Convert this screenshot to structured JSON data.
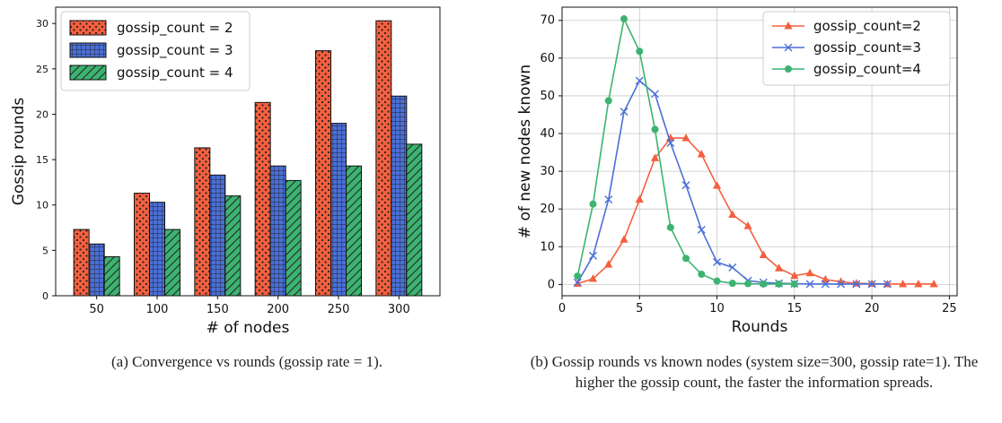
{
  "chart_data": [
    {
      "type": "bar",
      "xlabel": "# of nodes",
      "ylabel": "Gossip rounds",
      "categories": [
        "50",
        "100",
        "150",
        "200",
        "250",
        "300"
      ],
      "ylim": [
        0,
        31.8
      ],
      "yticks": [
        0,
        5,
        10,
        15,
        20,
        25,
        30
      ],
      "legend_position": "top-left",
      "grid": false,
      "series": [
        {
          "name": "gossip_count = 2",
          "color": "#f4603f",
          "hatch": "dots",
          "values": [
            7.3,
            11.3,
            16.3,
            21.3,
            27.0,
            30.3
          ]
        },
        {
          "name": "gossip_count = 3",
          "color": "#4a6fd8",
          "hatch": "grid",
          "values": [
            5.7,
            10.3,
            13.3,
            14.3,
            19.0,
            22.0
          ]
        },
        {
          "name": "gossip_count = 4",
          "color": "#3cb371",
          "hatch": "diagonal",
          "values": [
            4.3,
            7.3,
            11.0,
            12.7,
            14.3,
            16.7
          ]
        }
      ],
      "caption": "(a) Convergence vs rounds (gossip rate = 1)."
    },
    {
      "type": "line",
      "xlabel": "Rounds",
      "ylabel": "# of new nodes known",
      "xlim": [
        0,
        25.5
      ],
      "ylim": [
        -3,
        73.5
      ],
      "xticks": [
        0,
        5,
        10,
        15,
        20,
        25
      ],
      "yticks": [
        0,
        10,
        20,
        30,
        40,
        50,
        60,
        70
      ],
      "legend_position": "top-right",
      "grid": true,
      "series": [
        {
          "name": "gossip_count=2",
          "color": "#f4603f",
          "marker": "triangle",
          "x": [
            1,
            2,
            3,
            4,
            5,
            6,
            7,
            8,
            9,
            10,
            11,
            12,
            13,
            14,
            15,
            16,
            17,
            18,
            19,
            20,
            21,
            22,
            23,
            24
          ],
          "y": [
            0.2,
            1.5,
            5.3,
            11.9,
            22.5,
            33.5,
            38.8,
            38.8,
            34.5,
            26.2,
            18.5,
            15.5,
            7.8,
            4.3,
            2.3,
            3.0,
            1.3,
            0.7,
            0.3,
            0.2,
            0.1,
            0.1,
            0.1,
            0.1
          ]
        },
        {
          "name": "gossip_count=3",
          "color": "#4a6fd8",
          "marker": "x",
          "x": [
            1,
            2,
            3,
            4,
            5,
            6,
            7,
            8,
            9,
            10,
            11,
            12,
            13,
            14,
            15,
            16,
            17,
            18,
            19,
            20,
            21
          ],
          "y": [
            0.5,
            7.6,
            22.5,
            45.8,
            54.0,
            50.5,
            37.5,
            26.3,
            14.5,
            5.9,
            4.5,
            1.0,
            0.5,
            0.3,
            0.2,
            0.1,
            0.1,
            0.1,
            0.1,
            0.1,
            0.1
          ]
        },
        {
          "name": "gossip_count=4",
          "color": "#3cb371",
          "marker": "circle",
          "x": [
            1,
            2,
            3,
            4,
            5,
            6,
            7,
            8,
            9,
            10,
            11,
            12,
            13,
            14,
            15
          ],
          "y": [
            2.2,
            21.3,
            48.7,
            70.4,
            61.8,
            41.1,
            15.1,
            6.9,
            2.7,
            0.9,
            0.3,
            0.2,
            0.1,
            0.1,
            0.1
          ]
        }
      ],
      "caption": "(b) Gossip rounds vs known nodes (system size=300, gossip rate=1). The higher the gossip count, the faster the information spreads."
    }
  ]
}
